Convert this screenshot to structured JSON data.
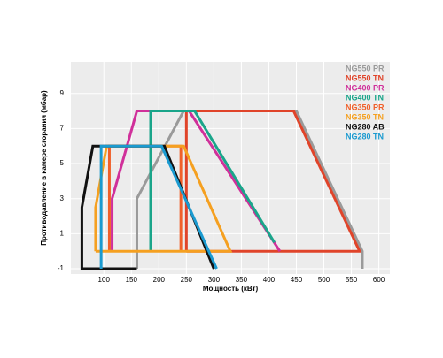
{
  "chart_data": {
    "type": "line",
    "xlabel": "Мощность (кВт)",
    "ylabel": "Противодавление в камере сгорания (мбар)",
    "xlim": [
      40,
      620
    ],
    "ylim": [
      -1.3,
      10.8
    ],
    "xticks": [
      100,
      150,
      200,
      250,
      300,
      350,
      400,
      450,
      500,
      550,
      600
    ],
    "yticks": [
      -1,
      1,
      3,
      5,
      7,
      9
    ],
    "grid": true,
    "series": [
      {
        "name": "NG550 PR",
        "color": "#9a9a9a",
        "x": [
          160,
          160,
          245,
          450,
          570,
          570
        ],
        "values": [
          -1,
          3,
          8,
          8,
          0,
          -1
        ]
      },
      {
        "name": "NG550 TN",
        "color": "#e0442a",
        "x": [
          250,
          250,
          445,
          565,
          250
        ],
        "values": [
          0,
          8,
          8,
          0,
          0
        ]
      },
      {
        "name": "NG400 PR",
        "color": "#d0309a",
        "x": [
          115,
          115,
          160,
          255,
          420
        ],
        "values": [
          0,
          3,
          8,
          8,
          0
        ]
      },
      {
        "name": "NG400 TN",
        "color": "#1aa58a",
        "x": [
          185,
          185,
          265,
          410
        ],
        "values": [
          0,
          8,
          8,
          0.5
        ]
      },
      {
        "name": "NG350 PR",
        "color": "#f0602a",
        "x": [
          110,
          110,
          240,
          240
        ],
        "values": [
          0,
          6,
          6,
          0
        ]
      },
      {
        "name": "NG350 TN",
        "color": "#f5a020",
        "x": [
          85,
          85,
          105,
          245,
          330,
          85
        ],
        "values": [
          0,
          2.5,
          6,
          6,
          0,
          0
        ]
      },
      {
        "name": "NG280 AB",
        "color": "#111111",
        "x": [
          160,
          60,
          60,
          80,
          210,
          300
        ],
        "values": [
          -1,
          -1,
          2.5,
          6,
          6,
          -1
        ]
      },
      {
        "name": "NG280 TN",
        "color": "#1a9ad0",
        "x": [
          95,
          95,
          205,
          305
        ],
        "values": [
          -1,
          6,
          6,
          -1
        ]
      }
    ]
  }
}
